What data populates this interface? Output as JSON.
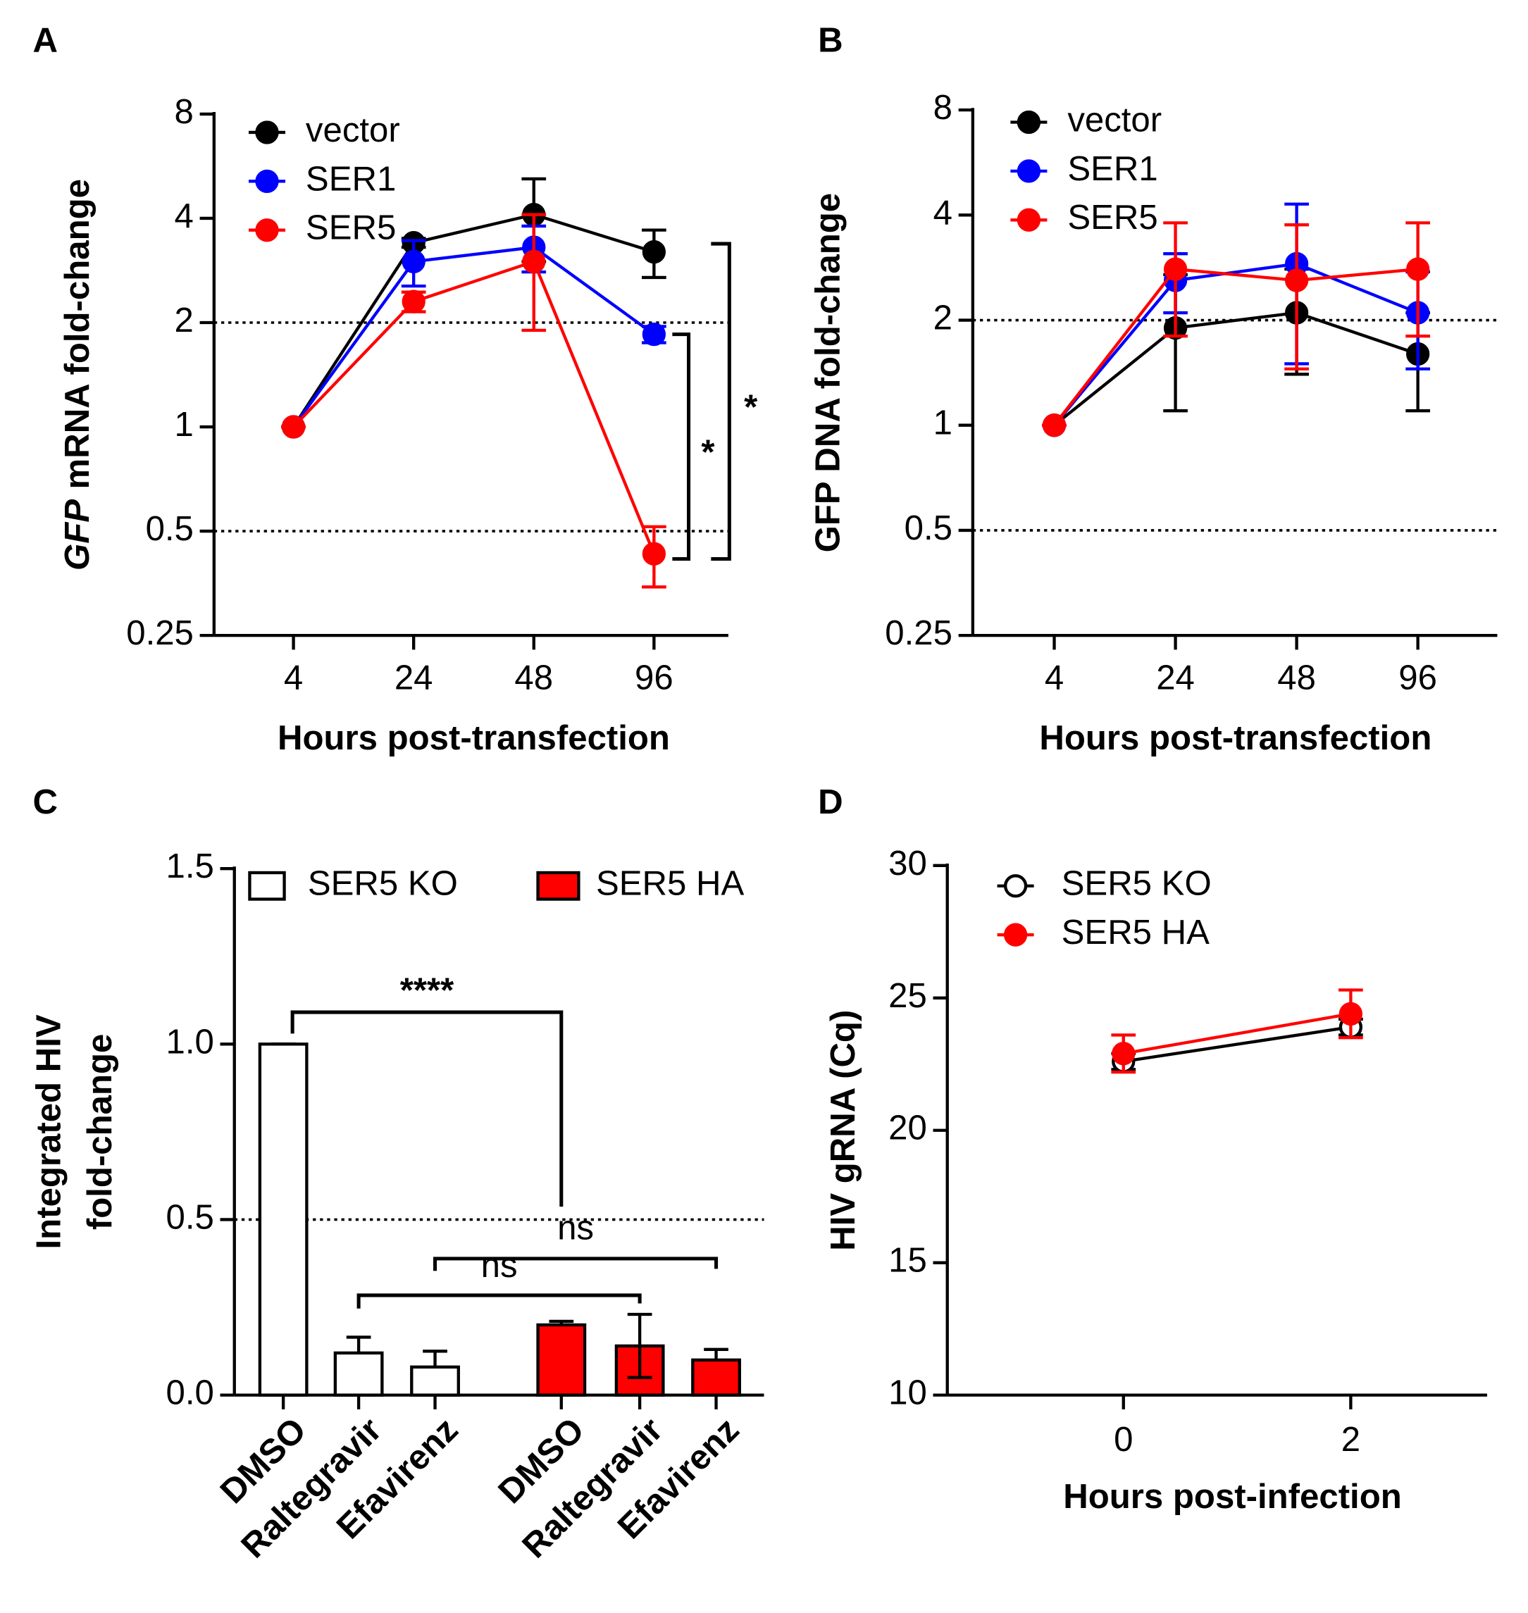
{
  "chart_data": [
    {
      "type": "line",
      "panel": "A",
      "ylabel_italic": "GFP",
      "ylabel": "mRNA fold-change",
      "xlabel": "Hours post-transfection",
      "categories": [
        "4",
        "24",
        "48",
        "96"
      ],
      "log_scale": true,
      "ylim": [
        0.25,
        8
      ],
      "yticks": [
        0.25,
        0.5,
        1,
        2,
        4,
        8
      ],
      "reference_lines": [
        2,
        0.5
      ],
      "series": [
        {
          "name": "vector",
          "color": "#000000",
          "values": [
            1,
            3.4,
            4.1,
            3.2
          ],
          "errors": [
            0,
            0.1,
            1.1,
            0.5
          ]
        },
        {
          "name": "SER1",
          "color": "#0000ff",
          "values": [
            1,
            3.0,
            3.3,
            1.85
          ],
          "errors": [
            0,
            0.45,
            0.5,
            0.1
          ]
        },
        {
          "name": "SER5",
          "color": "#ff0000",
          "values": [
            1,
            2.3,
            3.0,
            0.43
          ],
          "errors": [
            0,
            0.15,
            1.1,
            0.085
          ]
        }
      ],
      "annotations": [
        "*",
        "*"
      ]
    },
    {
      "type": "line",
      "panel": "B",
      "ylabel": "GFP DNA fold-change",
      "xlabel": "Hours post-transfection",
      "categories": [
        "4",
        "24",
        "48",
        "96"
      ],
      "log_scale": true,
      "ylim": [
        0.25,
        8
      ],
      "yticks": [
        0.25,
        0.5,
        1,
        2,
        4,
        8
      ],
      "reference_lines": [
        2,
        0.5
      ],
      "series": [
        {
          "name": "vector",
          "color": "#000000",
          "values": [
            1,
            1.9,
            2.1,
            1.6
          ],
          "errors": [
            0,
            0.8,
            0.7,
            0.5
          ]
        },
        {
          "name": "SER1",
          "color": "#0000ff",
          "values": [
            1,
            2.6,
            2.9,
            2.1
          ],
          "errors": [
            0,
            0.5,
            1.4,
            0.65
          ]
        },
        {
          "name": "SER5",
          "color": "#ff0000",
          "values": [
            1,
            2.8,
            2.6,
            2.8
          ],
          "errors": [
            0,
            1.0,
            1.15,
            1.0
          ]
        }
      ]
    },
    {
      "type": "bar",
      "panel": "C",
      "ylabel": [
        "Integrated HIV",
        "fold-change"
      ],
      "categories": [
        "DMSO",
        "Raltegravir",
        "Efavirenz",
        "DMSO",
        "Raltegravir",
        "Efavirenz"
      ],
      "ylim": [
        0,
        1.5
      ],
      "yticks": [
        {
          "value": 0,
          "label": "0.0"
        },
        0.5,
        {
          "value": 1,
          "label": "1.0"
        },
        1.5
      ],
      "reference_lines": [
        0.5
      ],
      "series": [
        {
          "name": "SER5 KO",
          "color": "#ffffff",
          "values": [
            1.0,
            0.12,
            0.08,
            null,
            null,
            null
          ],
          "errors": [
            0,
            0.045,
            0.045,
            null,
            null,
            null
          ]
        },
        {
          "name": "SER5 HA",
          "color": "#ff0000",
          "values": [
            null,
            null,
            null,
            0.2,
            0.14,
            0.1
          ],
          "errors": [
            null,
            null,
            null,
            0.01,
            0.09,
            0.03
          ]
        }
      ],
      "annotations": [
        "****",
        "ns",
        "ns"
      ]
    },
    {
      "type": "scatter",
      "panel": "D",
      "ylabel": "HIV gRNA (Cq)",
      "xlabel": "Hours post-infection",
      "x": [
        0,
        2
      ],
      "xlim": [
        -1.55,
        3.2
      ],
      "xticks": [
        0,
        2
      ],
      "ylim": [
        10,
        30
      ],
      "yticks": [
        10,
        15,
        20,
        25,
        30
      ],
      "series": [
        {
          "name": "SER5 KO",
          "color": "#000000",
          "open": true,
          "values": [
            22.6,
            23.9
          ],
          "errors": [
            0.3,
            0.3
          ]
        },
        {
          "name": "SER5 HA",
          "color": "#ff0000",
          "values": [
            22.9,
            24.4
          ],
          "errors": [
            0.7,
            0.9
          ]
        }
      ]
    }
  ]
}
